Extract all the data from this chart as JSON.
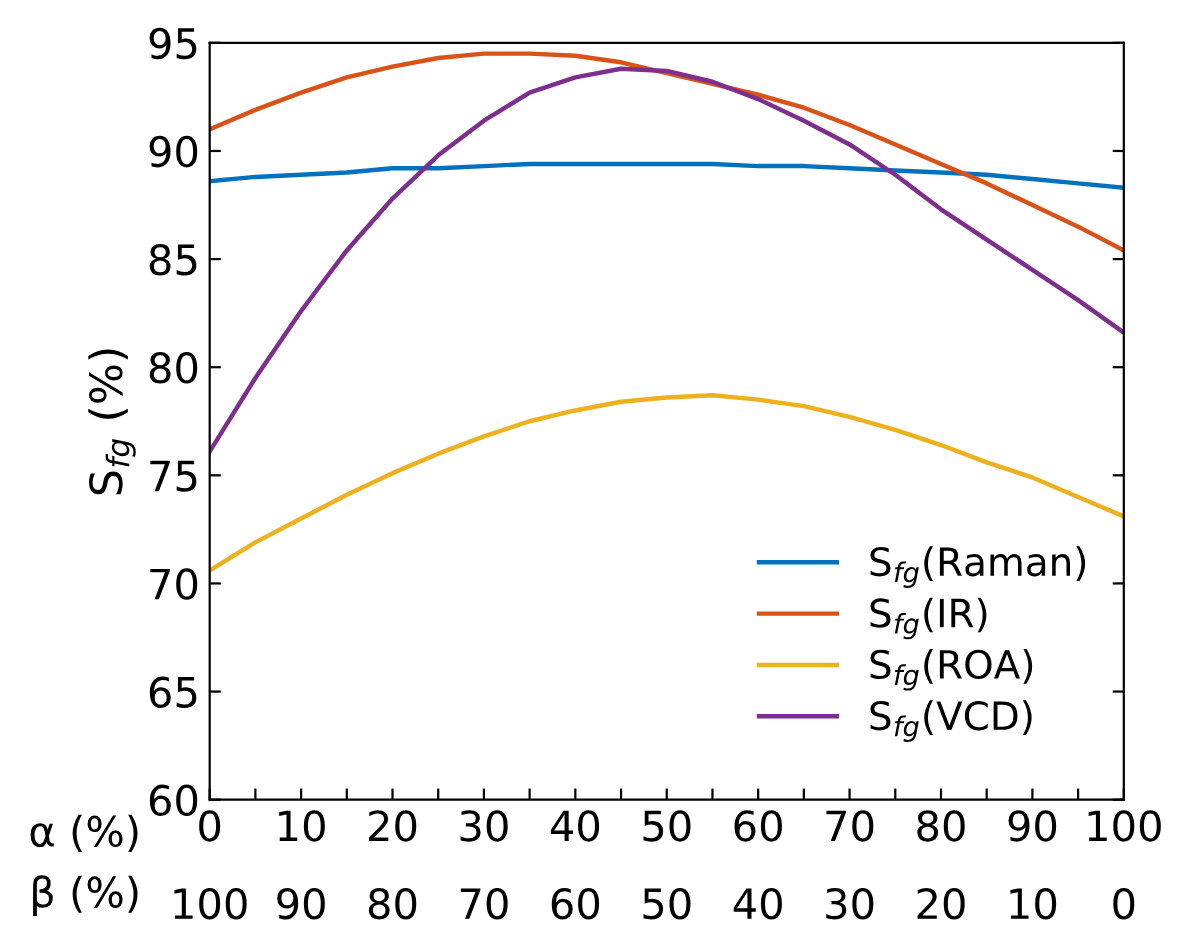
{
  "chart_data": {
    "type": "line",
    "ylabel": "S$_{fg}$ (%)",
    "xlabel": "α (%)",
    "x2label": "β (%)",
    "x": [
      0,
      5,
      10,
      15,
      20,
      25,
      30,
      35,
      40,
      45,
      50,
      55,
      60,
      65,
      70,
      75,
      80,
      85,
      90,
      95,
      100
    ],
    "series": [
      {
        "name": "S$_{fg}$(Raman)",
        "color": "#0072bd",
        "values": [
          88.6,
          88.8,
          88.9,
          89.0,
          89.2,
          89.2,
          89.3,
          89.4,
          89.4,
          89.4,
          89.4,
          89.4,
          89.3,
          89.3,
          89.2,
          89.1,
          89.0,
          88.9,
          88.7,
          88.5,
          88.3
        ]
      },
      {
        "name": "S$_{fg}$(IR)",
        "color": "#d95319",
        "values": [
          91.0,
          91.9,
          92.7,
          93.4,
          93.9,
          94.3,
          94.5,
          94.5,
          94.4,
          94.1,
          93.6,
          93.1,
          92.6,
          92.0,
          91.2,
          90.3,
          89.4,
          88.5,
          87.5,
          86.5,
          85.4
        ]
      },
      {
        "name": "S$_{fg}$(ROA)",
        "color": "#edb120",
        "values": [
          70.6,
          71.9,
          73.0,
          74.1,
          75.1,
          76.0,
          76.8,
          77.5,
          78.0,
          78.4,
          78.6,
          78.7,
          78.5,
          78.2,
          77.7,
          77.1,
          76.4,
          75.6,
          74.9,
          74.0,
          73.1
        ]
      },
      {
        "name": "S$_{fg}$(VCD)",
        "color": "#7e2f8e",
        "values": [
          76.1,
          79.5,
          82.6,
          85.4,
          87.8,
          89.8,
          91.4,
          92.7,
          93.4,
          93.8,
          93.7,
          93.2,
          92.4,
          91.4,
          90.3,
          88.9,
          87.3,
          85.9,
          84.5,
          83.1,
          81.6
        ]
      }
    ],
    "xlim": [
      0,
      100
    ],
    "xticks": [
      0,
      {
        "value": 5,
        "label": null
      },
      10,
      {
        "value": 15,
        "label": null
      },
      20,
      {
        "value": 25,
        "label": null
      },
      30,
      {
        "value": 35,
        "label": null
      },
      40,
      {
        "value": 45,
        "label": null
      },
      50,
      {
        "value": 55,
        "label": null
      },
      60,
      {
        "value": 65,
        "label": null
      },
      70,
      {
        "value": 75,
        "label": null
      },
      80,
      {
        "value": 85,
        "label": null
      },
      90,
      {
        "value": 95,
        "label": null
      },
      100
    ],
    "x2lim": [
      100,
      0
    ],
    "x2ticks": [
      100,
      90,
      80,
      70,
      60,
      50,
      40,
      30,
      20,
      10,
      0
    ],
    "ylim": [
      60,
      95
    ],
    "yticks": [
      60,
      65,
      70,
      75,
      80,
      85,
      90,
      95
    ],
    "grid": false,
    "legend": "lower right",
    "marker": "none",
    "line_style": "solid"
  }
}
